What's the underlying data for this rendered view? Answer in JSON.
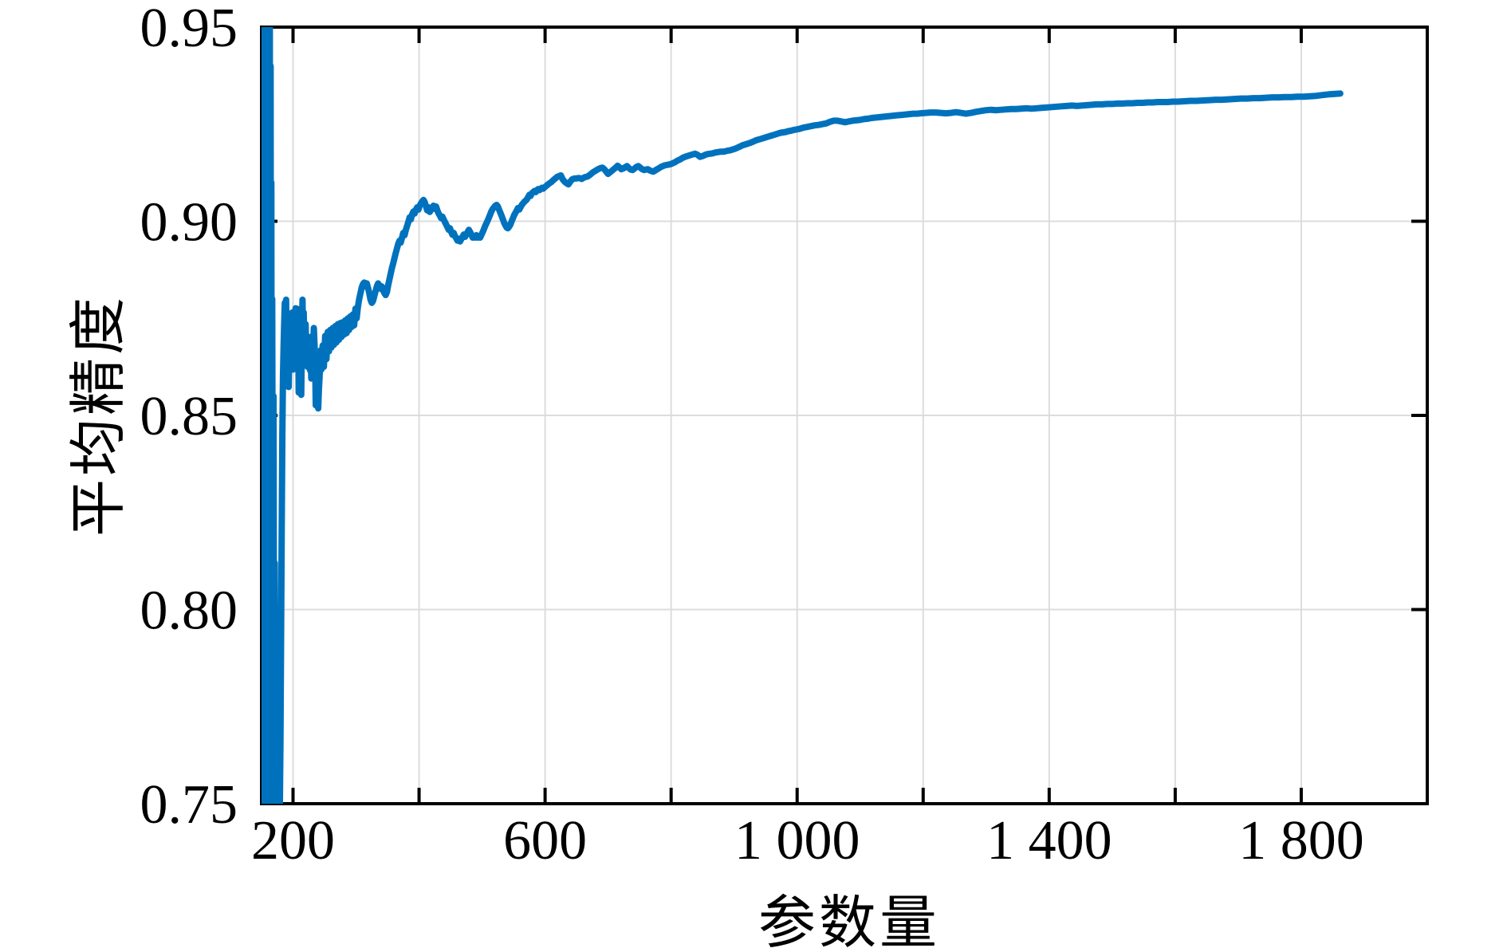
{
  "figure": {
    "background": "#ffffff",
    "frame_color": "#000000",
    "grid_color": "#dcdcdc",
    "tick_color": "#000000",
    "text_color": "#000000"
  },
  "chart_data": {
    "type": "line",
    "title": "",
    "xlabel": "参数量",
    "ylabel": "平均精度",
    "xlim": [
      150,
      2000
    ],
    "ylim": [
      0.75,
      0.95
    ],
    "xticks": [
      200,
      400,
      600,
      800,
      1000,
      1200,
      1400,
      1600,
      1800,
      2000
    ],
    "xtick_labels": [
      "200",
      "",
      "600",
      "",
      "1 000",
      "",
      "1 400",
      "",
      "1 800",
      ""
    ],
    "yticks": [
      0.75,
      0.8,
      0.85,
      0.9,
      0.95
    ],
    "ytick_labels": [
      "0.75",
      "0.80",
      "0.85",
      "0.90",
      "0.95"
    ],
    "grid": true,
    "legend": null,
    "series": [
      {
        "name": "平均精度",
        "color": "#0072BD",
        "line_width": 8,
        "points": [
          153,
          0.75,
          153.6,
          0.953,
          154.2,
          0.742,
          154.8,
          0.953,
          155.4,
          0.742,
          156,
          0.953,
          156.6,
          0.742,
          157.2,
          0.953,
          157.8,
          0.742,
          158.4,
          0.953,
          159,
          0.742,
          159.6,
          0.953,
          160.2,
          0.742,
          160.8,
          0.953,
          161.4,
          0.742,
          162,
          0.953,
          162.6,
          0.742,
          163.2,
          0.953,
          163.8,
          0.742,
          164.4,
          0.94,
          165,
          0.77,
          165.6,
          0.91,
          166.2,
          0.79,
          167,
          0.88,
          168,
          0.8,
          169,
          0.855,
          170,
          0.77,
          171,
          0.812,
          172,
          0.748,
          173,
          0.78,
          174,
          0.738,
          175,
          0.752,
          176,
          0.73,
          177,
          0.744,
          178,
          0.727,
          179,
          0.748,
          180,
          0.765,
          181,
          0.792,
          182,
          0.82,
          183,
          0.845,
          184,
          0.86,
          185,
          0.868,
          186,
          0.8737,
          187,
          0.879,
          188,
          0.8778,
          189,
          0.8798,
          190,
          0.866,
          191,
          0.8585,
          192,
          0.8705,
          193,
          0.8573,
          194,
          0.8688,
          195,
          0.8762,
          196,
          0.8628,
          197,
          0.875,
          198,
          0.8635,
          199,
          0.8765,
          200,
          0.8618,
          201,
          0.8725,
          202,
          0.8622,
          203,
          0.8745,
          204,
          0.8776,
          205,
          0.8668,
          206,
          0.8775,
          207,
          0.8645,
          208,
          0.8768,
          209,
          0.8559,
          210,
          0.868,
          211,
          0.8748,
          212,
          0.859,
          213,
          0.8553,
          214,
          0.87,
          215,
          0.8798,
          216,
          0.867,
          217,
          0.8765,
          218,
          0.8675,
          219,
          0.8682,
          220,
          0.8735,
          221,
          0.8655,
          222,
          0.8705,
          223,
          0.8625,
          224,
          0.8682,
          225,
          0.8628,
          226,
          0.8675,
          227,
          0.8616,
          228,
          0.8668,
          229,
          0.8595,
          230,
          0.8655,
          231,
          0.8705,
          232,
          0.8675,
          233,
          0.8725,
          234,
          0.8685,
          235,
          0.8645,
          236,
          0.8526,
          237,
          0.8585,
          238,
          0.8548,
          239,
          0.8605,
          240,
          0.8518,
          241,
          0.8565,
          242,
          0.8595,
          243,
          0.8635,
          244,
          0.8668,
          245,
          0.8618,
          246,
          0.8658,
          247,
          0.868,
          249,
          0.8625,
          251,
          0.8705,
          253,
          0.8645,
          255,
          0.8715,
          257,
          0.8665,
          259,
          0.872,
          261,
          0.8675,
          263,
          0.8725,
          265,
          0.8682,
          267,
          0.873,
          269,
          0.8688,
          271,
          0.8735,
          273,
          0.8695,
          275,
          0.8738,
          277,
          0.8702,
          279,
          0.874,
          281,
          0.8708,
          283,
          0.8745,
          285,
          0.8712,
          287,
          0.875,
          289,
          0.872,
          291,
          0.8755,
          293,
          0.8728,
          295,
          0.876,
          297,
          0.8732,
          299,
          0.8775,
          301,
          0.875,
          303,
          0.878,
          305,
          0.88,
          307,
          0.8815,
          309,
          0.883,
          311,
          0.8838,
          313,
          0.8842,
          315,
          0.8832,
          317,
          0.884,
          319,
          0.8828,
          321,
          0.8815,
          323,
          0.8798,
          325,
          0.879,
          327,
          0.8795,
          329,
          0.8808,
          331,
          0.882,
          333,
          0.8832,
          335,
          0.884,
          337,
          0.8835,
          339,
          0.8826,
          341,
          0.8832,
          343,
          0.8822,
          345,
          0.8815,
          347,
          0.881,
          349,
          0.8818,
          351,
          0.8835,
          353,
          0.885,
          355,
          0.8865,
          357,
          0.888,
          359,
          0.8892,
          361,
          0.8905,
          363,
          0.8918,
          365,
          0.893,
          367,
          0.8942,
          369,
          0.895,
          371,
          0.8945,
          373,
          0.8958,
          375,
          0.897,
          377,
          0.8964,
          379,
          0.8978,
          381,
          0.8988,
          383,
          0.8998,
          385,
          0.901,
          387,
          0.9005,
          389,
          0.9018,
          391,
          0.9025,
          393,
          0.902,
          395,
          0.903,
          397,
          0.9036,
          399,
          0.903,
          401,
          0.904,
          403,
          0.9046,
          405,
          0.9051,
          407,
          0.9055,
          409,
          0.9049,
          411,
          0.9038,
          413,
          0.9028,
          415,
          0.9036,
          417,
          0.9024,
          419,
          0.903,
          421,
          0.9036,
          423,
          0.904,
          425,
          0.9032,
          427,
          0.9038,
          429,
          0.9028,
          431,
          0.902,
          433,
          0.9015,
          435,
          0.9008,
          437,
          0.9012,
          439,
          0.9005,
          441,
          0.8998,
          443,
          0.8992,
          445,
          0.8985,
          447,
          0.8978,
          449,
          0.8982,
          451,
          0.8972,
          453,
          0.8965,
          455,
          0.897,
          457,
          0.8962,
          459,
          0.8956,
          461,
          0.895,
          463,
          0.8955,
          465,
          0.8948,
          467,
          0.8954,
          469,
          0.896,
          471,
          0.8966,
          473,
          0.896,
          475,
          0.8966,
          477,
          0.8972,
          479,
          0.8978,
          481,
          0.8972,
          483,
          0.8966,
          485,
          0.8958,
          487,
          0.8962,
          489,
          0.8958,
          491,
          0.8964,
          493,
          0.8958,
          495,
          0.8962,
          497,
          0.8958,
          499,
          0.8965,
          501,
          0.8972,
          503,
          0.898,
          505,
          0.8988,
          507,
          0.8995,
          509,
          0.9002,
          511,
          0.901,
          513,
          0.9018,
          515,
          0.9026,
          517,
          0.9032,
          519,
          0.9036,
          521,
          0.904,
          523,
          0.9042,
          525,
          0.9038,
          527,
          0.903,
          529,
          0.9022,
          531,
          0.9014,
          533,
          0.9005,
          535,
          0.8996,
          537,
          0.899,
          539,
          0.8984,
          541,
          0.8982,
          543,
          0.8986,
          545,
          0.8992,
          547,
          0.9,
          549,
          0.9008,
          551,
          0.9016,
          553,
          0.9022,
          555,
          0.9028,
          557,
          0.9034,
          559,
          0.903,
          561,
          0.9036,
          563,
          0.9042,
          565,
          0.9046,
          567,
          0.905,
          569,
          0.9053,
          571,
          0.9056,
          573,
          0.9062,
          575,
          0.9068,
          577,
          0.9065,
          579,
          0.9072,
          581,
          0.9075,
          583,
          0.9078,
          585,
          0.9075,
          587,
          0.908,
          589,
          0.9083,
          591,
          0.908,
          593,
          0.9084,
          595,
          0.9086,
          597,
          0.9084,
          599,
          0.9087,
          601,
          0.909,
          604,
          0.9094,
          607,
          0.9098,
          610,
          0.9101,
          613,
          0.9106,
          616,
          0.911,
          619,
          0.9114,
          622,
          0.9116,
          625,
          0.9118,
          628,
          0.9108,
          631,
          0.9102,
          634,
          0.9098,
          637,
          0.9095,
          640,
          0.9102,
          643,
          0.9108,
          646,
          0.911,
          649,
          0.911,
          652,
          0.9111,
          655,
          0.9111,
          658,
          0.9109,
          661,
          0.9112,
          664,
          0.9114,
          667,
          0.9115,
          670,
          0.9118,
          673,
          0.9122,
          676,
          0.9126,
          679,
          0.9129,
          682,
          0.9132,
          685,
          0.9135,
          688,
          0.9137,
          691,
          0.9138,
          694,
          0.9134,
          697,
          0.9128,
          700,
          0.9122,
          703,
          0.9126,
          706,
          0.913,
          709,
          0.9134,
          712,
          0.9138,
          715,
          0.9143,
          718,
          0.9139,
          721,
          0.9134,
          724,
          0.9136,
          727,
          0.9139,
          730,
          0.9142,
          733,
          0.9137,
          736,
          0.9133,
          739,
          0.9132,
          742,
          0.9136,
          745,
          0.914,
          748,
          0.9142,
          751,
          0.9138,
          754,
          0.9134,
          757,
          0.9132,
          760,
          0.9133,
          763,
          0.9134,
          766,
          0.9131,
          769,
          0.9129,
          772,
          0.9128,
          775,
          0.9131,
          778,
          0.9134,
          781,
          0.9137,
          784,
          0.914,
          787,
          0.9142,
          790,
          0.9144,
          793,
          0.9145,
          796,
          0.9146,
          799,
          0.9147,
          802,
          0.9149,
          806,
          0.9152,
          810,
          0.9156,
          814,
          0.9159,
          818,
          0.9163,
          822,
          0.9166,
          826,
          0.9168,
          830,
          0.917,
          834,
          0.9172,
          838,
          0.9174,
          842,
          0.9171,
          846,
          0.9166,
          850,
          0.9168,
          854,
          0.9171,
          858,
          0.9173,
          862,
          0.9174,
          866,
          0.9175,
          870,
          0.9177,
          874,
          0.9178,
          878,
          0.9179,
          882,
          0.9179,
          886,
          0.918,
          890,
          0.9182,
          894,
          0.9183,
          898,
          0.9185,
          902,
          0.9187,
          906,
          0.919,
          910,
          0.9193,
          914,
          0.9196,
          918,
          0.9198,
          922,
          0.92,
          926,
          0.9202,
          930,
          0.9205,
          934,
          0.9208,
          938,
          0.921,
          942,
          0.9212,
          946,
          0.9214,
          950,
          0.9216,
          954,
          0.9218,
          958,
          0.922,
          962,
          0.9222,
          966,
          0.9224,
          970,
          0.9226,
          974,
          0.9228,
          978,
          0.9229,
          982,
          0.923,
          986,
          0.9232,
          990,
          0.9233,
          994,
          0.9235,
          998,
          0.9236,
          1004,
          0.9238,
          1010,
          0.9241,
          1016,
          0.9243,
          1022,
          0.9245,
          1028,
          0.9247,
          1034,
          0.9248,
          1040,
          0.925,
          1046,
          0.9252,
          1052,
          0.9256,
          1058,
          0.9259,
          1064,
          0.9259,
          1070,
          0.9257,
          1076,
          0.9255,
          1082,
          0.9257,
          1088,
          0.9259,
          1094,
          0.926,
          1100,
          0.9261,
          1106,
          0.9263,
          1112,
          0.9264,
          1118,
          0.9266,
          1124,
          0.9267,
          1130,
          0.9268,
          1136,
          0.9269,
          1142,
          0.927,
          1148,
          0.9271,
          1154,
          0.9272,
          1160,
          0.9273,
          1166,
          0.9274,
          1172,
          0.9275,
          1178,
          0.9276,
          1184,
          0.9277,
          1190,
          0.9277,
          1196,
          0.9278,
          1204,
          0.9279,
          1212,
          0.928,
          1220,
          0.928,
          1228,
          0.9279,
          1236,
          0.9278,
          1244,
          0.9279,
          1252,
          0.9281,
          1260,
          0.9279,
          1268,
          0.9277,
          1276,
          0.9279,
          1284,
          0.9282,
          1292,
          0.9284,
          1300,
          0.9286,
          1308,
          0.9287,
          1316,
          0.9286,
          1324,
          0.9287,
          1332,
          0.9288,
          1340,
          0.9289,
          1348,
          0.9289,
          1356,
          0.929,
          1364,
          0.9291,
          1372,
          0.929,
          1380,
          0.9291,
          1388,
          0.9292,
          1396,
          0.9293,
          1404,
          0.9294,
          1412,
          0.9295,
          1420,
          0.9296,
          1428,
          0.9297,
          1436,
          0.9298,
          1444,
          0.9297,
          1452,
          0.9298,
          1460,
          0.9299,
          1468,
          0.93,
          1476,
          0.9301,
          1484,
          0.9301,
          1492,
          0.9302,
          1500,
          0.9302,
          1508,
          0.9303,
          1516,
          0.9303,
          1524,
          0.9304,
          1532,
          0.9304,
          1540,
          0.9305,
          1548,
          0.9305,
          1556,
          0.9306,
          1564,
          0.9306,
          1572,
          0.9307,
          1580,
          0.9307,
          1588,
          0.9307,
          1596,
          0.9308,
          1604,
          0.9308,
          1614,
          0.9309,
          1624,
          0.931,
          1634,
          0.931,
          1644,
          0.9311,
          1654,
          0.9312,
          1664,
          0.9313,
          1674,
          0.9313,
          1684,
          0.9314,
          1694,
          0.9315,
          1704,
          0.9316,
          1714,
          0.9316,
          1724,
          0.9317,
          1734,
          0.9317,
          1744,
          0.9318,
          1754,
          0.9319,
          1764,
          0.9319,
          1774,
          0.932,
          1784,
          0.932,
          1794,
          0.9321,
          1804,
          0.9321,
          1814,
          0.9322,
          1824,
          0.9323,
          1834,
          0.9325,
          1844,
          0.9327,
          1854,
          0.9328,
          1862,
          0.9329
        ]
      }
    ]
  }
}
